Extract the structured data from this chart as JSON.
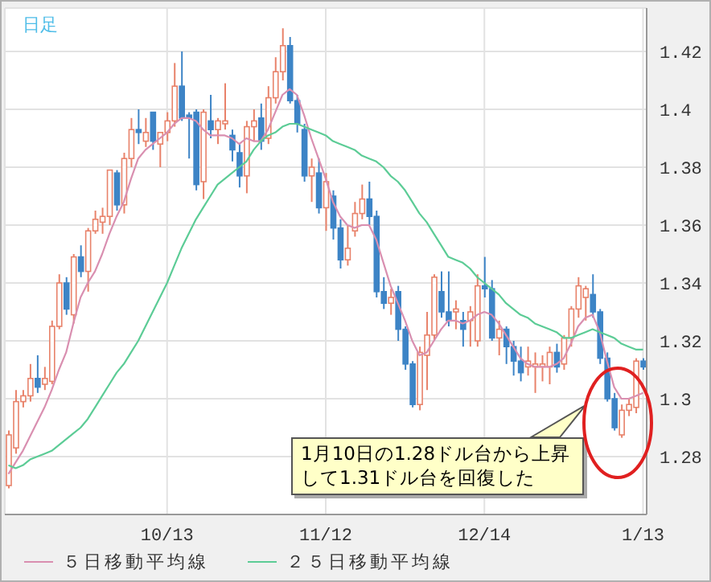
{
  "chart_data": {
    "type": "candlestick",
    "categories": [
      null,
      null,
      null,
      null,
      null,
      null,
      null,
      null,
      null,
      null,
      null,
      null,
      null,
      null,
      null,
      null,
      null,
      null,
      null,
      null,
      null,
      null,
      "10/13",
      null,
      null,
      null,
      null,
      null,
      null,
      null,
      null,
      null,
      null,
      null,
      null,
      null,
      null,
      null,
      null,
      null,
      null,
      null,
      null,
      null,
      "11/12",
      null,
      null,
      null,
      null,
      null,
      null,
      null,
      null,
      null,
      null,
      null,
      null,
      null,
      null,
      null,
      null,
      null,
      null,
      null,
      null,
      null,
      "12/14",
      null,
      null,
      null,
      null,
      null,
      null,
      null,
      null,
      null,
      null,
      null,
      null,
      null,
      null,
      null,
      null,
      null,
      null,
      null,
      null,
      null,
      "1/13"
    ],
    "series": [
      {
        "ohlc": [
          [
            1.27,
            1.289,
            1.269,
            1.2875
          ],
          [
            1.283,
            1.303,
            1.281,
            1.299
          ],
          [
            1.299,
            1.303,
            1.297,
            1.301
          ],
          [
            1.301,
            1.312,
            1.299,
            1.307
          ],
          [
            1.307,
            1.315,
            1.302,
            1.304
          ],
          [
            1.305,
            1.311,
            1.303,
            1.307
          ],
          [
            1.306,
            1.327,
            1.305,
            1.325
          ],
          [
            1.325,
            1.343,
            1.324,
            1.34
          ],
          [
            1.34,
            1.342,
            1.329,
            1.331
          ],
          [
            1.329,
            1.35,
            1.326,
            1.349
          ],
          [
            1.349,
            1.353,
            1.342,
            1.344
          ],
          [
            1.344,
            1.359,
            1.337,
            1.358
          ],
          [
            1.358,
            1.365,
            1.357,
            1.362
          ],
          [
            1.361,
            1.366,
            1.357,
            1.363
          ],
          [
            1.363,
            1.379,
            1.36,
            1.379
          ],
          [
            1.378,
            1.379,
            1.365,
            1.367
          ],
          [
            1.367,
            1.385,
            1.364,
            1.383
          ],
          [
            1.383,
            1.397,
            1.38,
            1.393
          ],
          [
            1.393,
            1.4,
            1.388,
            1.392
          ],
          [
            1.389,
            1.397,
            1.387,
            1.392
          ],
          [
            1.399,
            1.399,
            1.386,
            1.389
          ],
          [
            1.388,
            1.392,
            1.38,
            1.392
          ],
          [
            1.392,
            1.399,
            1.389,
            1.396
          ],
          [
            1.396,
            1.416,
            1.394,
            1.408
          ],
          [
            1.408,
            1.42,
            1.396,
            1.397
          ],
          [
            1.398,
            1.399,
            1.383,
            1.397
          ],
          [
            1.399,
            1.4,
            1.372,
            1.374
          ],
          [
            1.375,
            1.4,
            1.369,
            1.399
          ],
          [
            1.396,
            1.405,
            1.39,
            1.393
          ],
          [
            1.393,
            1.397,
            1.388,
            1.396
          ],
          [
            1.395,
            1.409,
            1.393,
            1.396
          ],
          [
            1.391,
            1.393,
            1.382,
            1.386
          ],
          [
            1.385,
            1.388,
            1.373,
            1.377
          ],
          [
            1.377,
            1.396,
            1.371,
            1.394
          ],
          [
            1.394,
            1.4,
            1.389,
            1.396
          ],
          [
            1.397,
            1.402,
            1.386,
            1.389
          ],
          [
            1.39,
            1.408,
            1.388,
            1.404
          ],
          [
            1.404,
            1.418,
            1.402,
            1.413
          ],
          [
            1.413,
            1.428,
            1.41,
            1.422
          ],
          [
            1.422,
            1.425,
            1.402,
            1.403
          ],
          [
            1.403,
            1.405,
            1.392,
            1.395
          ],
          [
            1.393,
            1.395,
            1.375,
            1.377
          ],
          [
            1.377,
            1.383,
            1.368,
            1.38
          ],
          [
            1.378,
            1.383,
            1.364,
            1.366
          ],
          [
            1.366,
            1.378,
            1.358,
            1.375
          ],
          [
            1.37,
            1.372,
            1.355,
            1.359
          ],
          [
            1.359,
            1.362,
            1.345,
            1.348
          ],
          [
            1.348,
            1.36,
            1.346,
            1.352
          ],
          [
            1.358,
            1.368,
            1.356,
            1.364
          ],
          [
            1.364,
            1.374,
            1.362,
            1.369
          ],
          [
            1.369,
            1.375,
            1.36,
            1.363
          ],
          [
            1.363,
            1.365,
            1.335,
            1.337
          ],
          [
            1.337,
            1.342,
            1.331,
            1.333
          ],
          [
            1.333,
            1.338,
            1.329,
            1.335
          ],
          [
            1.337,
            1.339,
            1.32,
            1.324
          ],
          [
            1.324,
            1.325,
            1.31,
            1.312
          ],
          [
            1.312,
            1.313,
            1.297,
            1.298
          ],
          [
            1.298,
            1.318,
            1.296,
            1.316
          ],
          [
            1.315,
            1.33,
            1.303,
            1.322
          ],
          [
            1.322,
            1.343,
            1.32,
            1.342
          ],
          [
            1.337,
            1.344,
            1.328,
            1.33
          ],
          [
            1.33,
            1.344,
            1.325,
            1.327
          ],
          [
            1.33,
            1.334,
            1.324,
            1.331
          ],
          [
            1.327,
            1.33,
            1.318,
            1.324
          ],
          [
            1.327,
            1.332,
            1.318,
            1.33
          ],
          [
            1.32,
            1.343,
            1.318,
            1.339
          ],
          [
            1.339,
            1.349,
            1.335,
            1.338
          ],
          [
            1.338,
            1.341,
            1.32,
            1.321
          ],
          [
            1.321,
            1.327,
            1.315,
            1.324
          ],
          [
            1.324,
            1.325,
            1.312,
            1.318
          ],
          [
            1.318,
            1.32,
            1.308,
            1.313
          ],
          [
            1.313,
            1.318,
            1.306,
            1.309
          ],
          [
            1.311,
            1.318,
            1.308,
            1.313
          ],
          [
            1.311,
            1.316,
            1.302,
            1.312
          ],
          [
            1.311,
            1.315,
            1.306,
            1.312
          ],
          [
            1.311,
            1.318,
            1.305,
            1.316
          ],
          [
            1.316,
            1.319,
            1.309,
            1.311
          ],
          [
            1.312,
            1.322,
            1.31,
            1.321
          ],
          [
            1.321,
            1.332,
            1.318,
            1.331
          ],
          [
            1.331,
            1.342,
            1.328,
            1.339
          ],
          [
            1.335,
            1.339,
            1.327,
            1.338
          ],
          [
            1.336,
            1.343,
            1.328,
            1.33
          ],
          [
            1.33,
            1.331,
            1.312,
            1.314
          ],
          [
            1.314,
            1.316,
            1.299,
            1.3
          ],
          [
            1.3,
            1.302,
            1.289,
            1.29
          ],
          [
            1.2875,
            1.298,
            1.2865,
            1.296
          ],
          [
            1.296,
            1.3,
            1.294,
            1.298
          ],
          [
            1.297,
            1.314,
            1.295,
            1.313
          ],
          [
            1.313,
            1.314,
            1.31,
            1.311
          ]
        ],
        "colors": [
          "#e8826a",
          "#e8826a",
          "#e8826a",
          "#e8826a",
          "#3d84c6",
          "#e8826a",
          "#e8826a",
          "#e8826a",
          "#3d84c6",
          "#e8826a",
          "#3d84c6",
          "#e8826a",
          "#e8826a",
          "#e8826a",
          "#e8826a",
          "#3d84c6",
          "#e8826a",
          "#e8826a",
          "#3d84c6",
          "#e8826a",
          "#3d84c6",
          "#e8826a",
          "#e8826a",
          "#e8826a",
          "#3d84c6",
          "#3d84c6",
          "#3d84c6",
          "#e8826a",
          "#3d84c6",
          "#e8826a",
          "#e8826a",
          "#3d84c6",
          "#3d84c6",
          "#e8826a",
          "#e8826a",
          "#3d84c6",
          "#e8826a",
          "#e8826a",
          "#e8826a",
          "#3d84c6",
          "#3d84c6",
          "#3d84c6",
          "#e8826a",
          "#3d84c6",
          "#e8826a",
          "#3d84c6",
          "#3d84c6",
          "#e8826a",
          "#e8826a",
          "#e8826a",
          "#3d84c6",
          "#3d84c6",
          "#3d84c6",
          "#e8826a",
          "#3d84c6",
          "#3d84c6",
          "#3d84c6",
          "#e8826a",
          "#e8826a",
          "#e8826a",
          "#3d84c6",
          "#3d84c6",
          "#e8826a",
          "#3d84c6",
          "#e8826a",
          "#e8826a",
          "#3d84c6",
          "#3d84c6",
          "#e8826a",
          "#3d84c6",
          "#3d84c6",
          "#3d84c6",
          "#e8826a",
          "#e8826a",
          "#e8826a",
          "#e8826a",
          "#3d84c6",
          "#e8826a",
          "#e8826a",
          "#e8826a",
          "#e8826a",
          "#3d84c6",
          "#3d84c6",
          "#3d84c6",
          "#3d84c6",
          "#e8826a",
          "#e8826a",
          "#e8826a",
          "#3d84c6"
        ]
      },
      {
        "type": "line",
        "name": "５日移動平均線",
        "color": "#d98fb0",
        "values": [
          1.274,
          1.278,
          1.282,
          1.287,
          1.292,
          1.297,
          1.303,
          1.31,
          1.316,
          1.326,
          1.335,
          1.34,
          1.344,
          1.35,
          1.357,
          1.363,
          1.368,
          1.376,
          1.383,
          1.386,
          1.388,
          1.39,
          1.392,
          1.395,
          1.397,
          1.397,
          1.396,
          1.393,
          1.391,
          1.391,
          1.391,
          1.39,
          1.388,
          1.39,
          1.389,
          1.389,
          1.393,
          1.399,
          1.405,
          1.407,
          1.405,
          1.398,
          1.39,
          1.383,
          1.376,
          1.368,
          1.363,
          1.36,
          1.359,
          1.36,
          1.36,
          1.355,
          1.347,
          1.339,
          1.333,
          1.327,
          1.32,
          1.315,
          1.316,
          1.32,
          1.324,
          1.327,
          1.327,
          1.326,
          1.327,
          1.329,
          1.33,
          1.329,
          1.326,
          1.322,
          1.318,
          1.314,
          1.312,
          1.311,
          1.311,
          1.311,
          1.312,
          1.314,
          1.319,
          1.325,
          1.328,
          1.329,
          1.323,
          1.313,
          1.304,
          1.3,
          1.3,
          1.301,
          1.302
        ]
      },
      {
        "type": "line",
        "name": "２５日移動平均線",
        "color": "#5ccc96",
        "values": [
          1.277,
          1.276,
          1.277,
          1.279,
          1.28,
          1.281,
          1.282,
          1.284,
          1.286,
          1.288,
          1.29,
          1.293,
          1.297,
          1.301,
          1.305,
          1.309,
          1.312,
          1.316,
          1.32,
          1.325,
          1.33,
          1.335,
          1.34,
          1.346,
          1.352,
          1.357,
          1.362,
          1.366,
          1.37,
          1.374,
          1.376,
          1.378,
          1.38,
          1.382,
          1.386,
          1.389,
          1.391,
          1.392,
          1.394,
          1.395,
          1.395,
          1.394,
          1.393,
          1.392,
          1.391,
          1.389,
          1.388,
          1.387,
          1.386,
          1.384,
          1.383,
          1.382,
          1.38,
          1.377,
          1.375,
          1.372,
          1.368,
          1.364,
          1.361,
          1.357,
          1.353,
          1.349,
          1.348,
          1.347,
          1.345,
          1.342,
          1.34,
          1.338,
          1.336,
          1.333,
          1.331,
          1.329,
          1.328,
          1.326,
          1.325,
          1.324,
          1.323,
          1.321,
          1.321,
          1.322,
          1.323,
          1.324,
          1.323,
          1.322,
          1.321,
          1.319,
          1.318,
          1.317,
          1.317
        ]
      }
    ],
    "ylim": [
      1.26,
      1.435
    ],
    "yticks": [
      1.28,
      1.3,
      1.32,
      1.34,
      1.36,
      1.38,
      1.4,
      1.42
    ],
    "grid": true,
    "legend": "bottom",
    "marker": "none",
    "line_style": "solid",
    "annotations": [
      "日足",
      "1月10日の1.28ドル台から上昇して1.31ドル台を回復した"
    ]
  }
}
